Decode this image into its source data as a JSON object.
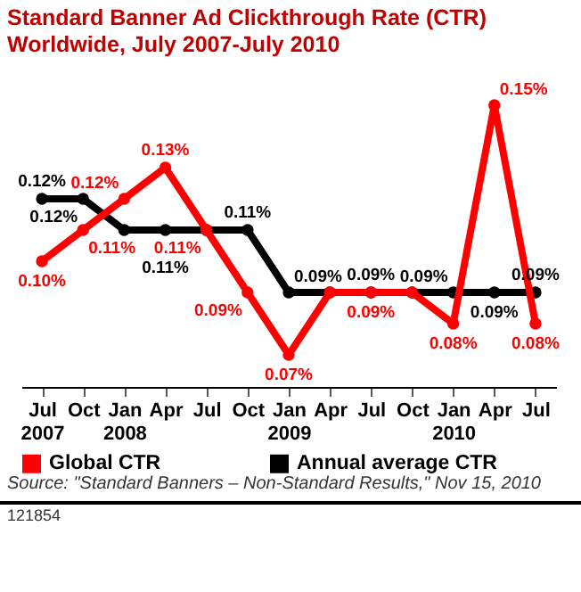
{
  "chart_data": {
    "type": "line",
    "title": "Standard Banner Ad Clickthrough Rate (CTR) Worldwide, July 2007-July 2010",
    "categories": [
      "Jul 2007",
      "Oct",
      "Jan 2008",
      "Apr",
      "Jul",
      "Oct",
      "Jan 2009",
      "Apr",
      "Jul",
      "Oct",
      "Jan 2010",
      "Apr",
      "Jul"
    ],
    "series": [
      {
        "name": "Global CTR",
        "color": "#ff0000",
        "values": [
          0.1,
          0.11,
          0.12,
          0.13,
          0.11,
          0.09,
          0.07,
          0.09,
          0.09,
          0.09,
          0.08,
          0.15,
          0.08
        ],
        "value_labels": [
          "0.10%",
          "0.11%",
          "0.12%",
          "0.13%",
          "0.11%",
          "0.09%",
          "0.07%",
          null,
          "0.09%",
          null,
          "0.08%",
          "0.15%",
          "0.08%"
        ]
      },
      {
        "name": "Annual average CTR",
        "color": "#000000",
        "values": [
          0.12,
          0.12,
          0.11,
          0.11,
          0.11,
          0.11,
          0.09,
          0.09,
          0.09,
          0.09,
          0.09,
          0.09,
          0.09
        ],
        "value_labels": [
          "0.12%",
          "0.12%",
          null,
          "0.11%",
          null,
          "0.11%",
          "0.09%",
          null,
          "0.09%",
          null,
          "0.09%",
          "0.09%",
          "0.09%"
        ]
      }
    ],
    "marker": "circle",
    "legend": "bottom",
    "grid": false,
    "annotations": [
      "Source: \"Standard Banners – Non-Standard Results,\" Nov 15, 2010",
      "121854"
    ]
  }
}
